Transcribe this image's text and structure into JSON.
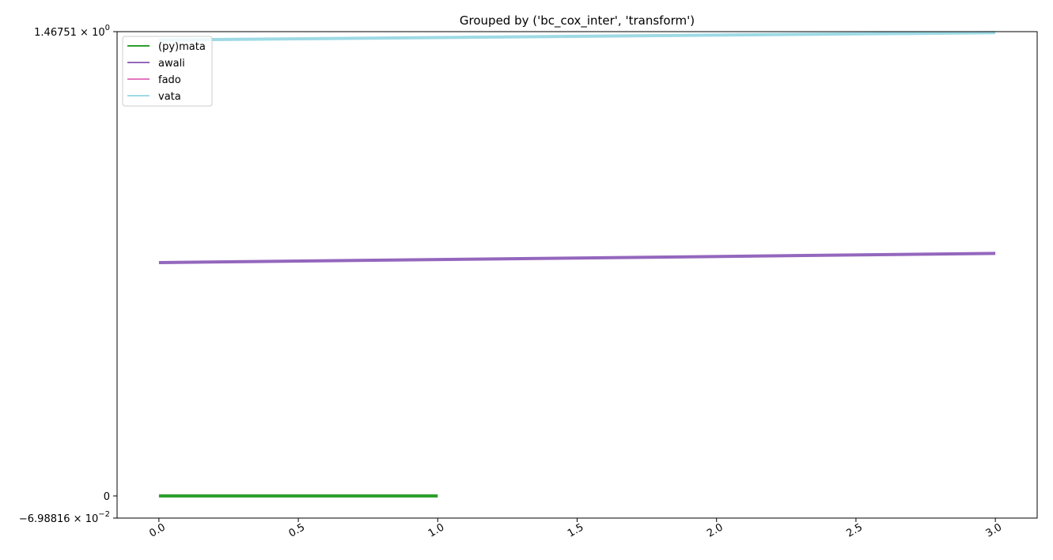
{
  "chart_data": {
    "type": "line",
    "title": "Grouped by ('bc_cox_inter', 'transform')",
    "xlabel": "",
    "ylabel": "",
    "xlim": [
      -0.15,
      3.15
    ],
    "ylim": [
      -0.0698816,
      1.46751
    ],
    "yscale": "symlog",
    "grid": false,
    "legend_position": "upper left",
    "x_ticks": [
      0.0,
      0.5,
      1.0,
      1.5,
      2.0,
      2.5,
      3.0
    ],
    "x_tick_labels": [
      "0.0",
      "0.5",
      "1.0",
      "1.5",
      "2.0",
      "2.5",
      "3.0"
    ],
    "y_tick_labels": {
      "top": {
        "mantissa": "1.46751",
        "times": "×",
        "base": "10",
        "exp": "0"
      },
      "zero": "0",
      "bottom": {
        "mantissa": "−6.98816",
        "times": "×",
        "base": "10",
        "exp": "−2"
      }
    },
    "series": [
      {
        "name": "(py)mata",
        "color": "#2ca02c",
        "x": [
          0,
          1
        ],
        "y": [
          0,
          0
        ]
      },
      {
        "name": "awali",
        "color": "#9467bd",
        "x": [
          0,
          3
        ],
        "y": [
          0.2,
          0.218
        ]
      },
      {
        "name": "fado",
        "color": "#e377c2",
        "x": [],
        "y": []
      },
      {
        "name": "vata",
        "color": "#9edae5",
        "x": [
          0,
          3
        ],
        "y": [
          1.37,
          1.455
        ]
      }
    ]
  }
}
